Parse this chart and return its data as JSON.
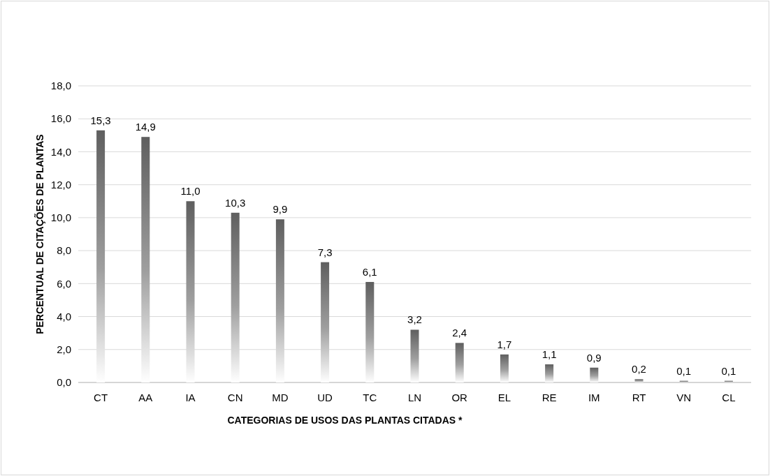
{
  "chart_data": {
    "type": "bar",
    "xlabel": "CATEGORIAS DE USOS DAS PLANTAS CITADAS *",
    "ylabel": "PERCENTUAL DE CITAÇÕES DE PLANTAS",
    "categories": [
      "CT",
      "AA",
      "IA",
      "CN",
      "MD",
      "UD",
      "TC",
      "LN",
      "OR",
      "EL",
      "RE",
      "IM",
      "RT",
      "VN",
      "CL"
    ],
    "values": [
      15.3,
      14.9,
      11.0,
      10.3,
      9.9,
      7.3,
      6.1,
      3.2,
      2.4,
      1.7,
      1.1,
      0.9,
      0.2,
      0.1,
      0.1
    ],
    "value_labels": [
      "15,3",
      "14,9",
      "11,0",
      "10,3",
      "9,9",
      "7,3",
      "6,1",
      "3,2",
      "2,4",
      "1,7",
      "1,1",
      "0,9",
      "0,2",
      "0,1",
      "0,1"
    ],
    "color": "#5f5f5f",
    "ylim": [
      0,
      18
    ],
    "yticks": [
      {
        "value": 0,
        "label": "0,0"
      },
      {
        "value": 2,
        "label": "2,0"
      },
      {
        "value": 4,
        "label": "4,0"
      },
      {
        "value": 6,
        "label": "6,0"
      },
      {
        "value": 8,
        "label": "8,0"
      },
      {
        "value": 10,
        "label": "10,0"
      },
      {
        "value": 12,
        "label": "12,0"
      },
      {
        "value": 14,
        "label": "14,0"
      },
      {
        "value": 16,
        "label": "16,0"
      },
      {
        "value": 18,
        "label": "18,0"
      }
    ],
    "grid": "y"
  }
}
